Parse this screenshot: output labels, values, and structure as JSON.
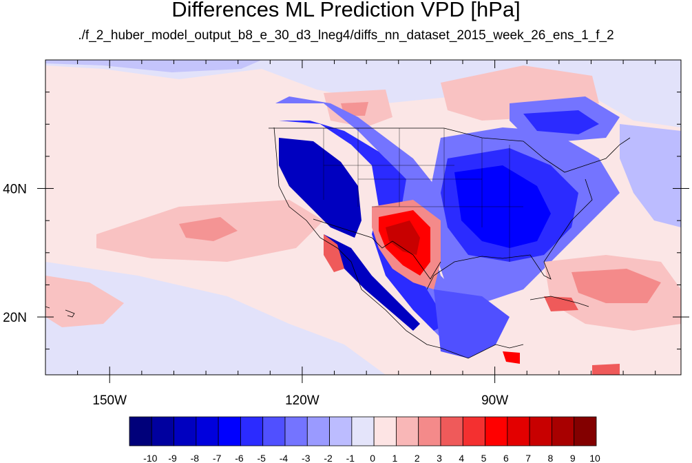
{
  "title": "Differences ML Prediction VPD [hPa]",
  "subtitle": "./f_2_huber_model_output_b8_e_30_d3_lneg4/diffs_nn_dataset_2015_week_26_ens_1_f_2",
  "map": {
    "lon_range": [
      -160,
      -61
    ],
    "lat_range": [
      11,
      60
    ],
    "x_ticks": [
      {
        "lon": -150,
        "label": "150W"
      },
      {
        "lon": -120,
        "label": "120W"
      },
      {
        "lon": -90,
        "label": "90W"
      }
    ],
    "y_ticks": [
      {
        "lat": 40,
        "label": "40N"
      },
      {
        "lat": 20,
        "label": "20N"
      }
    ]
  },
  "colorbar": {
    "labels": [
      "-10",
      "-9",
      "-8",
      "-7",
      "-6",
      "-5",
      "-4",
      "-3",
      "-2",
      "-1",
      "0",
      "1",
      "2",
      "3",
      "4",
      "5",
      "6",
      "7",
      "8",
      "9",
      "10"
    ],
    "colors": [
      "#00007a",
      "#00009f",
      "#0000c0",
      "#0000dd",
      "#0000ff",
      "#2b2bff",
      "#5050ff",
      "#7474ff",
      "#9a9aff",
      "#bcbcff",
      "#e4e4fa",
      "#fde4e4",
      "#f9b7b7",
      "#f48a8a",
      "#ef5a5a",
      "#f43030",
      "#ff0000",
      "#e30000",
      "#c80000",
      "#a80000",
      "#830000"
    ]
  }
}
